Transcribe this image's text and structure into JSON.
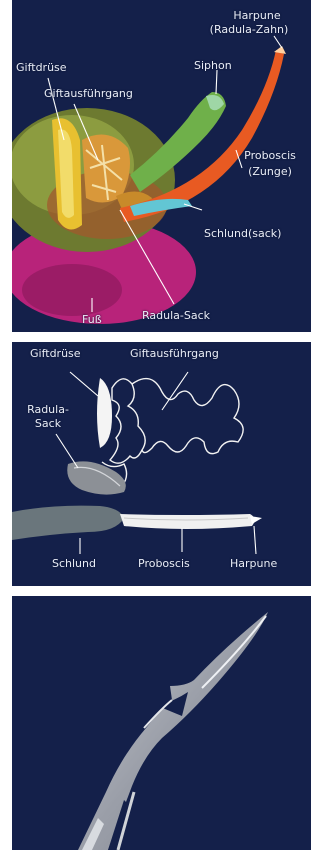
{
  "panel1": {
    "labels": {
      "harpune": "Harpune",
      "radula_zahn": "(Radula-Zahn)",
      "siphon": "Siphon",
      "giftdruese": "Giftdrüse",
      "giftausfuehrgang": "Giftausführgang",
      "proboscis": "Proboscis",
      "zunge": "(Zunge)",
      "schlundsack": "Schlund(sack)",
      "fuss": "Fuß",
      "radula_sack": "Radula-Sack"
    },
    "colors": {
      "proboscis": "#e85a22",
      "siphon": "#6fb04a",
      "foot": "#b8237a",
      "body": "#8a9a3c",
      "venom_gland": "#e8c030"
    }
  },
  "panel2": {
    "labels": {
      "giftdruese": "Giftdrüse",
      "giftausfuehrgang": "Giftausführgang",
      "radula": "Radula-",
      "sack": "Sack",
      "schlund": "Schlund",
      "proboscis": "Proboscis",
      "harpune": "Harpune"
    }
  },
  "panel3": {
    "subject": "harpoon-tooth-micrograph"
  },
  "colors": {
    "panel_bg": "#14204a",
    "label": "#e9edf7"
  }
}
